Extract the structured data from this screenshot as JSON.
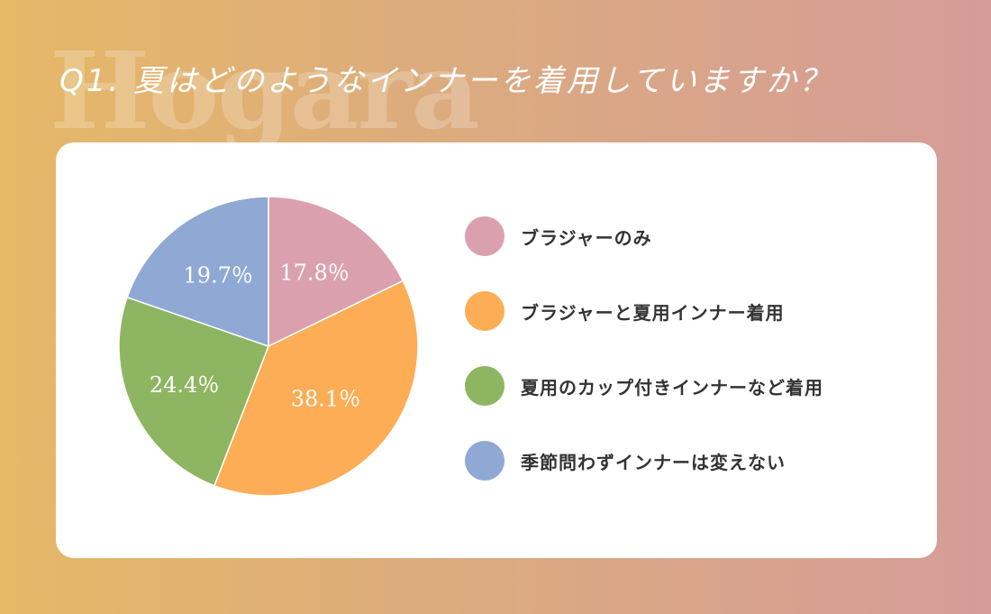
{
  "watermark": "Hogara",
  "question": "Q1. 夏はどのようなインナーを着用していますか？",
  "chart_data": {
    "type": "pie",
    "title": "",
    "start_angle_deg": 0,
    "direction": "clockwise",
    "slices": [
      {
        "label": "ブラジャーのみ",
        "value": 17.8,
        "value_label": "17.8％",
        "color": "#dba0ae"
      },
      {
        "label": "ブラジャーと夏用インナー着用",
        "value": 38.1,
        "value_label": "38.1％",
        "color": "#fcad56"
      },
      {
        "label": "夏用のカップ付きインナーなど着用",
        "value": 24.4,
        "value_label": "24.4％",
        "color": "#8eb561"
      },
      {
        "label": "季節問わずインナーは変えない",
        "value": 19.7,
        "value_label": "19.7％",
        "color": "#8fa9d4"
      }
    ],
    "legend_position": "right"
  }
}
